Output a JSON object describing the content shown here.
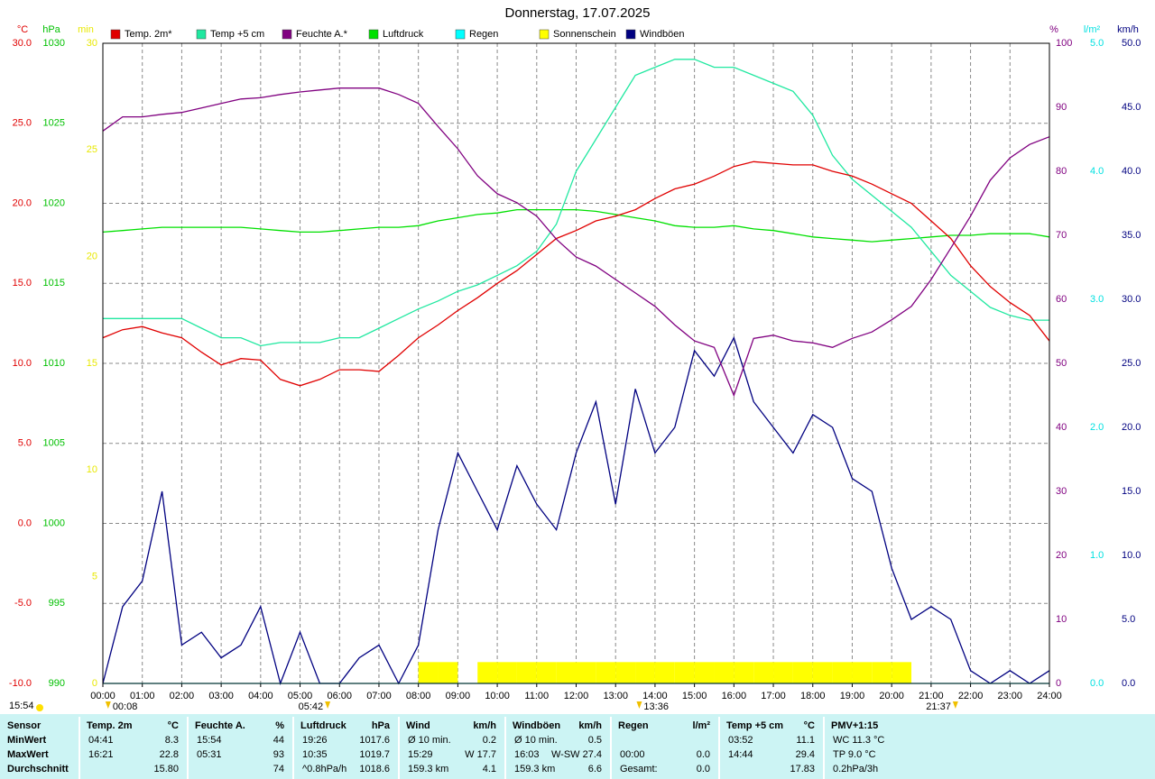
{
  "chart_data": {
    "type": "line",
    "title": "Donnerstag, 17.07.2025",
    "x": [
      0,
      0.5,
      1,
      1.5,
      2,
      2.5,
      3,
      3.5,
      4,
      4.5,
      5,
      5.5,
      6,
      6.5,
      7,
      7.5,
      8,
      8.5,
      9,
      9.5,
      10,
      10.5,
      11,
      11.5,
      12,
      12.5,
      13,
      13.5,
      14,
      14.5,
      15,
      15.5,
      16,
      16.5,
      17,
      17.5,
      18,
      18.5,
      19,
      19.5,
      20,
      20.5,
      21,
      21.5,
      22,
      22.5,
      23,
      23.5,
      24
    ],
    "xlim": [
      0,
      24
    ],
    "xticks": [
      {
        "value": 0,
        "label": "00:00"
      },
      {
        "value": 1,
        "label": "01:00"
      },
      {
        "value": 2,
        "label": "02:00"
      },
      {
        "value": 3,
        "label": "03:00"
      },
      {
        "value": 4,
        "label": "04:00"
      },
      {
        "value": 5,
        "label": "05:00"
      },
      {
        "value": 6,
        "label": "06:00"
      },
      {
        "value": 7,
        "label": "07:00"
      },
      {
        "value": 8,
        "label": "08:00"
      },
      {
        "value": 9,
        "label": "09:00"
      },
      {
        "value": 10,
        "label": "10:00"
      },
      {
        "value": 11,
        "label": "11:00"
      },
      {
        "value": 12,
        "label": "12:00"
      },
      {
        "value": 13,
        "label": "13:00"
      },
      {
        "value": 14,
        "label": "14:00"
      },
      {
        "value": 15,
        "label": "15:00"
      },
      {
        "value": 16,
        "label": "16:00"
      },
      {
        "value": 17,
        "label": "17:00"
      },
      {
        "value": 18,
        "label": "18:00"
      },
      {
        "value": 19,
        "label": "19:00"
      },
      {
        "value": 20,
        "label": "20:00"
      },
      {
        "value": 21,
        "label": "21:00"
      },
      {
        "value": 22,
        "label": "22:00"
      },
      {
        "value": 23,
        "label": "23:00"
      },
      {
        "value": 24,
        "label": "24:00"
      }
    ],
    "grid": true,
    "axes": [
      {
        "label": "°C",
        "color": "#e00000",
        "side": "left",
        "lim": [
          -10,
          30
        ],
        "ticks": [
          {
            "value": 30,
            "label": "30.0"
          },
          {
            "value": 25,
            "label": "25.0"
          },
          {
            "value": 20,
            "label": "20.0"
          },
          {
            "value": 15,
            "label": "15.0"
          },
          {
            "value": 10,
            "label": "10.0"
          },
          {
            "value": 5,
            "label": "5.0"
          },
          {
            "value": 0,
            "label": "0.0"
          },
          {
            "value": -5,
            "label": "-5.0"
          },
          {
            "value": -10,
            "label": "-10.0"
          }
        ]
      },
      {
        "label": "hPa",
        "color": "#00c000",
        "side": "left",
        "lim": [
          990,
          1030
        ],
        "ticks": [
          1030,
          1025,
          1020,
          1015,
          1010,
          1005,
          1000,
          995,
          990
        ]
      },
      {
        "label": "min",
        "color": "#e8e800",
        "side": "left",
        "lim": [
          0,
          30
        ],
        "ticks": [
          30,
          25,
          20,
          15,
          10,
          5,
          0
        ]
      },
      {
        "label": "%",
        "color": "#800080",
        "side": "right",
        "lim": [
          0,
          100
        ],
        "ticks": [
          100,
          90,
          80,
          70,
          60,
          50,
          40,
          30,
          20,
          10,
          0
        ]
      },
      {
        "label": "l/m²",
        "color": "#00e0e0",
        "side": "right",
        "lim": [
          0,
          5
        ],
        "ticks": [
          {
            "value": 5,
            "label": "5.0"
          },
          {
            "value": 4,
            "label": "4.0"
          },
          {
            "value": 3,
            "label": "3.0"
          },
          {
            "value": 2,
            "label": "2.0"
          },
          {
            "value": 1,
            "label": "1.0"
          },
          {
            "value": 0,
            "label": "0.0"
          }
        ]
      },
      {
        "label": "km/h",
        "color": "#000080",
        "side": "right",
        "lim": [
          0,
          50
        ],
        "ticks": [
          {
            "value": 50,
            "label": "50.0"
          },
          {
            "value": 45,
            "label": "45.0"
          },
          {
            "value": 40,
            "label": "40.0"
          },
          {
            "value": 35,
            "label": "35.0"
          },
          {
            "value": 30,
            "label": "30.0"
          },
          {
            "value": 25,
            "label": "25.0"
          },
          {
            "value": 20,
            "label": "20.0"
          },
          {
            "value": 15,
            "label": "15.0"
          },
          {
            "value": 10,
            "label": "10.0"
          },
          {
            "value": 5,
            "label": "5.0"
          },
          {
            "value": 0,
            "label": "0.0"
          }
        ]
      }
    ],
    "series": [
      {
        "name": "Temp. 2m*",
        "color": "#e00000",
        "axis": 0,
        "type": "line",
        "values": [
          11.6,
          12.1,
          12.3,
          11.9,
          11.6,
          10.7,
          9.9,
          10.3,
          10.2,
          9.0,
          8.6,
          9.0,
          9.6,
          9.6,
          9.5,
          10.5,
          11.6,
          12.4,
          13.3,
          14.1,
          15.0,
          15.8,
          16.8,
          17.8,
          18.3,
          18.9,
          19.2,
          19.6,
          20.3,
          20.9,
          21.2,
          21.7,
          22.3,
          22.6,
          22.5,
          22.4,
          22.4,
          22.0,
          21.7,
          21.2,
          20.6,
          20.0,
          18.9,
          17.8,
          16.1,
          14.8,
          13.8,
          13.0,
          11.4
        ]
      },
      {
        "name": "Temp +5 cm",
        "color": "#20e8a0",
        "axis": 0,
        "type": "line",
        "values": [
          12.8,
          12.8,
          12.8,
          12.8,
          12.8,
          12.2,
          11.6,
          11.6,
          11.1,
          11.3,
          11.3,
          11.3,
          11.6,
          11.6,
          12.2,
          12.8,
          13.4,
          13.9,
          14.5,
          14.9,
          15.5,
          16.1,
          17.0,
          18.7,
          22.0,
          24.0,
          26.0,
          28.0,
          28.5,
          29.0,
          29.0,
          28.5,
          28.5,
          28.0,
          27.5,
          27.0,
          25.5,
          23.0,
          21.5,
          20.5,
          19.5,
          18.5,
          17.0,
          15.5,
          14.5,
          13.5,
          13.0,
          12.7,
          12.7
        ]
      },
      {
        "name": "Feuchte A.*",
        "color": "#800080",
        "axis": 3,
        "type": "line",
        "values": [
          86.3,
          88.5,
          88.5,
          88.9,
          89.2,
          89.9,
          90.6,
          91.3,
          91.5,
          92.0,
          92.4,
          92.7,
          93.0,
          93.0,
          93.0,
          92.0,
          90.6,
          87.0,
          83.5,
          79.3,
          76.5,
          75.1,
          73.0,
          69.4,
          66.6,
          65.2,
          63.1,
          61.0,
          58.9,
          56.0,
          53.5,
          52.5,
          45.0,
          53.9,
          54.4,
          53.5,
          53.2,
          52.5,
          53.9,
          54.9,
          56.8,
          58.9,
          63.1,
          68.0,
          73.0,
          78.6,
          82.1,
          84.2,
          85.4
        ]
      },
      {
        "name": "Luftdruck",
        "color": "#00e000",
        "axis": 1,
        "type": "line",
        "values": [
          1018.2,
          1018.3,
          1018.4,
          1018.5,
          1018.5,
          1018.5,
          1018.5,
          1018.5,
          1018.4,
          1018.3,
          1018.2,
          1018.2,
          1018.3,
          1018.4,
          1018.5,
          1018.5,
          1018.6,
          1018.9,
          1019.1,
          1019.3,
          1019.4,
          1019.6,
          1019.6,
          1019.6,
          1019.6,
          1019.5,
          1019.3,
          1019.1,
          1018.9,
          1018.6,
          1018.5,
          1018.5,
          1018.6,
          1018.4,
          1018.3,
          1018.1,
          1017.9,
          1017.8,
          1017.7,
          1017.6,
          1017.7,
          1017.8,
          1017.9,
          1018.0,
          1018.0,
          1018.1,
          1018.1,
          1018.1,
          1017.9
        ]
      },
      {
        "name": "Regen",
        "color": "#00ffff",
        "axis": 4,
        "type": "line",
        "values": [
          0,
          0,
          0,
          0,
          0,
          0,
          0,
          0,
          0,
          0,
          0,
          0,
          0,
          0,
          0,
          0,
          0,
          0,
          0,
          0,
          0,
          0,
          0,
          0,
          0,
          0,
          0,
          0,
          0,
          0,
          0,
          0,
          0,
          0,
          0,
          0,
          0,
          0,
          0,
          0,
          0,
          0,
          0,
          0,
          0,
          0,
          0,
          0,
          0
        ]
      },
      {
        "name": "Sonnenschein",
        "color": "#ffff00",
        "axis": 2,
        "type": "bar",
        "values": [
          0,
          0,
          0,
          0,
          0,
          0,
          0,
          0,
          0,
          0,
          0,
          0,
          0,
          0,
          0,
          0,
          1,
          1,
          0,
          1,
          1,
          1,
          1,
          1,
          1,
          1,
          1,
          1,
          1,
          1,
          1,
          1,
          1,
          1,
          1,
          1,
          1,
          1,
          1,
          1,
          1,
          0,
          0,
          0,
          0,
          0,
          0,
          0,
          0
        ]
      },
      {
        "name": "Windböen",
        "color": "#000080",
        "axis": 5,
        "type": "line",
        "values": [
          0,
          6,
          8,
          15,
          3,
          4,
          2,
          3,
          6,
          0,
          4,
          0,
          0,
          2,
          3,
          0,
          3,
          12,
          18,
          15,
          12,
          17,
          14,
          12,
          18,
          22,
          14,
          23,
          18,
          20,
          26,
          24,
          27,
          22,
          20,
          18,
          21,
          20,
          16,
          15,
          9,
          5,
          6,
          5,
          1,
          0,
          1,
          0,
          1
        ]
      }
    ],
    "events": [
      "00:08",
      "05:42",
      "13:36",
      "21:37"
    ],
    "corner_note": "15:54"
  },
  "table": {
    "sections": [
      {
        "title": "Sensor",
        "rows": [
          {
            "l": "MinWert"
          },
          {
            "l": "MaxWert"
          },
          {
            "l": "Durchschnitt"
          }
        ]
      },
      {
        "title": "Temp. 2m",
        "unit": "°C",
        "rows": [
          {
            "l": "04:41",
            "r": "8.3"
          },
          {
            "l": "16:21",
            "r": "22.8"
          },
          {
            "r": "15.80"
          }
        ]
      },
      {
        "title": "Feuchte A.",
        "unit": "%",
        "rows": [
          {
            "l": "15:54",
            "r": "44"
          },
          {
            "l": "05:31",
            "r": "93"
          },
          {
            "r": "74"
          }
        ]
      },
      {
        "title": "Luftdruck",
        "unit": "hPa",
        "rows": [
          {
            "l": "19:26",
            "r": "1017.6"
          },
          {
            "l": "10:35",
            "r": "1019.7"
          },
          {
            "l": "^0.8hPa/h",
            "r": "1018.6"
          }
        ]
      },
      {
        "title": "Wind",
        "unit": "km/h",
        "rows": [
          {
            "l": "Ø 10 min.",
            "r": "0.2"
          },
          {
            "l": "15:29",
            "r": "W 17.7"
          },
          {
            "l": "159.3 km",
            "r": "4.1"
          }
        ]
      },
      {
        "title": "Windböen",
        "unit": "km/h",
        "rows": [
          {
            "l": "Ø 10 min.",
            "r": "0.5"
          },
          {
            "l": "16:03",
            "r": "W-SW 27.4"
          },
          {
            "l": "159.3 km",
            "r": "6.6"
          }
        ]
      },
      {
        "title": "Regen",
        "unit": "l/m²",
        "rows": [
          {},
          {
            "l": "00:00",
            "r": "0.0"
          },
          {
            "l": "Gesamt:",
            "r": "0.0"
          }
        ]
      },
      {
        "title": "Temp +5 cm",
        "unit": "°C",
        "rows": [
          {
            "l": "03:52",
            "r": "11.1"
          },
          {
            "l": "14:44",
            "r": "29.4"
          },
          {
            "r": "17.83"
          }
        ]
      },
      {
        "title": "PMV+1:15",
        "rows": [
          {
            "l": "WC 11.3 °C"
          },
          {
            "l": "TP 9.0 °C"
          },
          {
            "l": "0.2hPa/3h"
          }
        ]
      }
    ]
  }
}
